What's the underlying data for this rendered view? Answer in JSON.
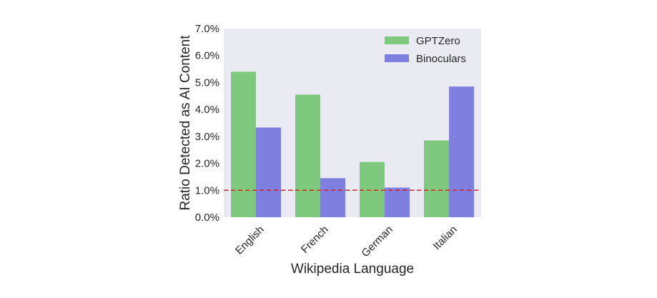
{
  "chart_data": {
    "type": "bar",
    "categories": [
      "English",
      "French",
      "German",
      "Italian"
    ],
    "series": [
      {
        "name": "GPTZero",
        "values": [
          5.4,
          4.55,
          2.05,
          2.85
        ],
        "color": "#7fc97f"
      },
      {
        "name": "Binoculars",
        "values": [
          3.33,
          1.45,
          1.1,
          4.85
        ],
        "color": "#7f7fdf"
      }
    ],
    "xlabel": "Wikipedia Language",
    "ylabel": "Ratio Detected as AI Content",
    "ylim": [
      0,
      7
    ],
    "yticks": [
      "0.0%",
      "1.0%",
      "2.0%",
      "3.0%",
      "4.0%",
      "5.0%",
      "6.0%",
      "7.0%"
    ],
    "reference_line": {
      "value": 1.0,
      "style": "dashed",
      "color": "#e41a1c"
    },
    "legend_position": "top-right",
    "grid": false,
    "background": "#eaeaf2"
  }
}
